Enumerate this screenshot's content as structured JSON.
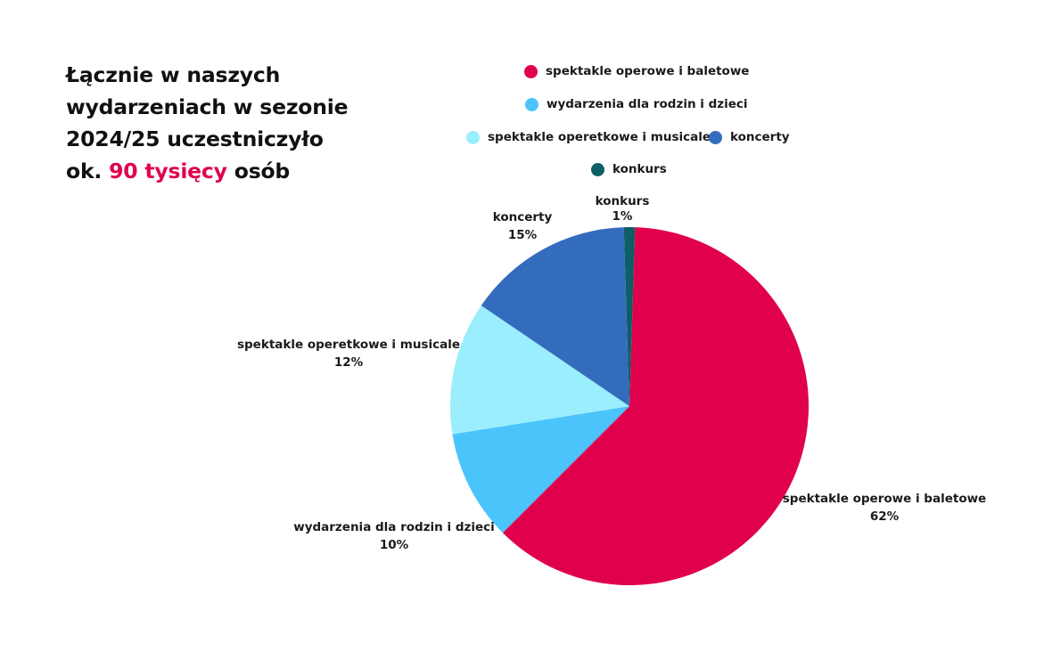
{
  "heading": {
    "line1": "Łącznie w naszych",
    "line2": "wydarzeniach w sezonie",
    "line3": "2024/25 uczestniczyło",
    "line4_prefix": "ok. ",
    "line4_highlight": "90 tysięcy",
    "line4_suffix": " osób",
    "highlight_color": "#e0004d"
  },
  "chart_data": {
    "type": "pie",
    "slices": [
      {
        "name": "spektakle operowe i baletowe",
        "value": 62,
        "label": "62%",
        "color": "#e0004d"
      },
      {
        "name": "wydarzenia dla rodzin i dzieci",
        "value": 10,
        "label": "10%",
        "color": "#4bc4fb"
      },
      {
        "name": "spektakle operetkowe i musicale",
        "value": 12,
        "label": "12%",
        "color": "#9beefd"
      },
      {
        "name": "koncerty",
        "value": 15,
        "label": "15%",
        "color": "#346cbd"
      },
      {
        "name": "konkurs",
        "value": 1,
        "label": "1%",
        "color": "#0d5e66"
      }
    ],
    "legend": [
      {
        "name": "spektakle operowe i baletowe",
        "color": "#e0004d"
      },
      {
        "name": "wydarzenia dla rodzin i dzieci",
        "color": "#4bc4fb"
      },
      {
        "name": "spektakle operetkowe i musicale",
        "color": "#9beefd"
      },
      {
        "name": "koncerty",
        "color": "#346cbd"
      },
      {
        "name": "konkurs",
        "color": "#0d5e66"
      }
    ],
    "legend_position": "top-right"
  }
}
